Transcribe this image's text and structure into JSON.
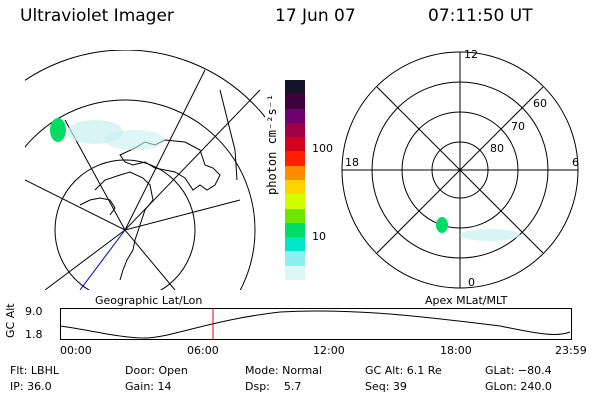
{
  "header": {
    "title": "Ultraviolet Imager",
    "date": "17 Jun 07",
    "time": "07:11:50 UT"
  },
  "colorbar": {
    "unit_label": "photon cm⁻²s⁻¹",
    "ticks": [
      "100",
      "10"
    ],
    "colors": [
      "#141428",
      "#3c003c",
      "#6e006e",
      "#a00046",
      "#d2001e",
      "#ff1e00",
      "#ff8c00",
      "#ffd200",
      "#d2ff00",
      "#6ee600",
      "#00dc64",
      "#00e6c8",
      "#8cf0f0",
      "#dcf5f5"
    ]
  },
  "geo_map": {
    "caption": "Geographic Lat/Lon"
  },
  "polar_plot": {
    "caption": "Apex MLat/MLT",
    "mlt_labels": {
      "top": "12",
      "left": "18",
      "right": "6",
      "bottom": "0"
    },
    "lat_labels": [
      "60",
      "70",
      "80"
    ]
  },
  "orbit_plot": {
    "ylabel": "GC Alt",
    "y_ticks": [
      "9.0",
      "1.8"
    ],
    "x_ticks": [
      "00:00",
      "06:00",
      "12:00",
      "18:00",
      "23:59"
    ],
    "current_time_marker": "07:11:50"
  },
  "info_panel": {
    "filter": "Flt: LBHL",
    "ip": "IP: 36.0",
    "door": "Door: Open",
    "gain": "Gain: 14",
    "mode": "Mode: Normal",
    "dsp": "Dsp:    5.7",
    "gc_alt": "GC Alt: 6.1 Re",
    "seq": "Seq: 39",
    "glat": "GLat: −80.4",
    "glon": "GLon: 240.0"
  }
}
